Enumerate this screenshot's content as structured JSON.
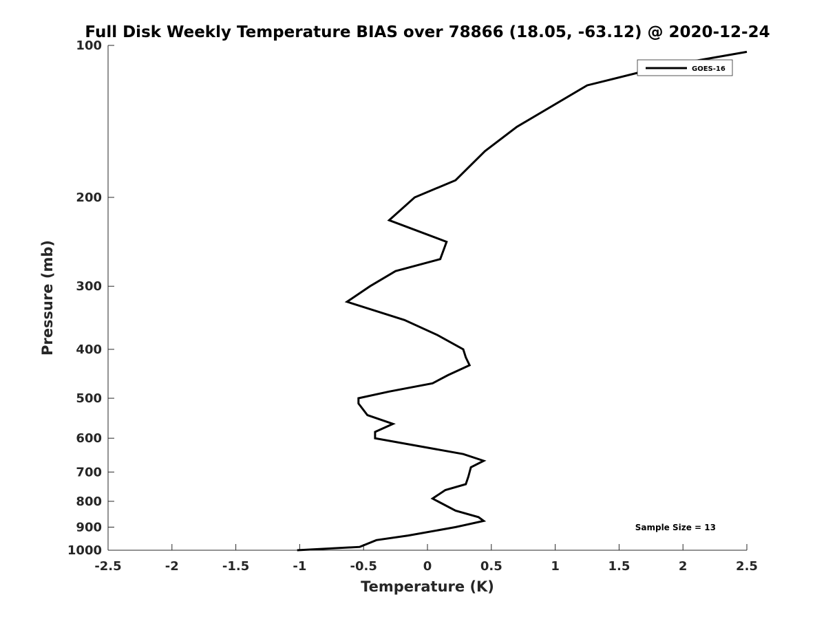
{
  "chart_data": {
    "type": "line",
    "title": "Full Disk Weekly Temperature BIAS over 78866 (18.05, -63.12) @ 2020-12-24",
    "xlabel": "Temperature (K)",
    "ylabel": "Pressure (mb)",
    "xlim": [
      -2.5,
      2.5
    ],
    "ylim": [
      1000,
      100
    ],
    "y_scale": "log",
    "x_ticks": [
      -2.5,
      -2,
      -1.5,
      -1,
      -0.5,
      0,
      0.5,
      1,
      1.5,
      2,
      2.5
    ],
    "x_tick_labels": [
      "-2.5",
      "-2",
      "-1.5",
      "-1",
      "-0.5",
      "0",
      "0.5",
      "1",
      "1.5",
      "2",
      "2.5"
    ],
    "y_ticks": [
      100,
      200,
      300,
      400,
      500,
      600,
      700,
      800,
      900,
      1000
    ],
    "y_tick_labels": [
      "100",
      "200",
      "300",
      "400",
      "500",
      "600",
      "700",
      "800",
      "900",
      "1000"
    ],
    "grid": false,
    "legend_position": "top-right",
    "series": [
      {
        "name": "GOES-16",
        "color": "#000000",
        "points": [
          {
            "x": 2.5,
            "y": 103
          },
          {
            "x": 1.85,
            "y": 110
          },
          {
            "x": 1.25,
            "y": 120
          },
          {
            "x": 0.7,
            "y": 145
          },
          {
            "x": 0.45,
            "y": 162
          },
          {
            "x": 0.22,
            "y": 185
          },
          {
            "x": -0.1,
            "y": 200
          },
          {
            "x": -0.3,
            "y": 222
          },
          {
            "x": 0.15,
            "y": 245
          },
          {
            "x": 0.1,
            "y": 265
          },
          {
            "x": -0.25,
            "y": 280
          },
          {
            "x": -0.45,
            "y": 300
          },
          {
            "x": -0.63,
            "y": 322
          },
          {
            "x": -0.18,
            "y": 350
          },
          {
            "x": 0.08,
            "y": 375
          },
          {
            "x": 0.28,
            "y": 400
          },
          {
            "x": 0.3,
            "y": 415
          },
          {
            "x": 0.33,
            "y": 430
          },
          {
            "x": 0.16,
            "y": 450
          },
          {
            "x": 0.04,
            "y": 467
          },
          {
            "x": -0.3,
            "y": 485
          },
          {
            "x": -0.54,
            "y": 500
          },
          {
            "x": -0.54,
            "y": 512
          },
          {
            "x": -0.47,
            "y": 540
          },
          {
            "x": -0.27,
            "y": 562
          },
          {
            "x": -0.41,
            "y": 583
          },
          {
            "x": -0.41,
            "y": 600
          },
          {
            "x": 0.28,
            "y": 645
          },
          {
            "x": 0.44,
            "y": 665
          },
          {
            "x": 0.34,
            "y": 685
          },
          {
            "x": 0.32,
            "y": 715
          },
          {
            "x": 0.3,
            "y": 740
          },
          {
            "x": 0.14,
            "y": 760
          },
          {
            "x": 0.04,
            "y": 790
          },
          {
            "x": 0.22,
            "y": 835
          },
          {
            "x": 0.4,
            "y": 860
          },
          {
            "x": 0.44,
            "y": 875
          },
          {
            "x": 0.22,
            "y": 900
          },
          {
            "x": -0.15,
            "y": 935
          },
          {
            "x": -0.4,
            "y": 955
          },
          {
            "x": -0.53,
            "y": 985
          },
          {
            "x": -1.02,
            "y": 1000
          }
        ]
      }
    ],
    "annotations": [
      "Sample Size = 13"
    ]
  }
}
